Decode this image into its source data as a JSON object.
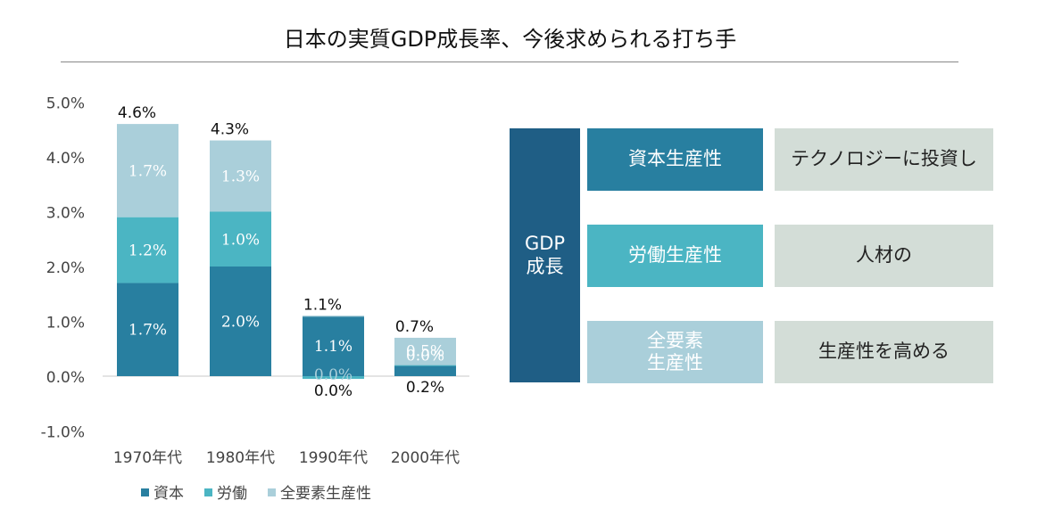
{
  "title": "日本の実質GDP成長率、今後求められる打ち手",
  "colors": {
    "capital": "#287fa0",
    "labor": "#4bb5c3",
    "tfp": "#aacfda",
    "axis_text": "#444444",
    "gdp_box": "#1f5e85",
    "green_box": "#d3ddd7"
  },
  "chart_data": {
    "type": "bar",
    "stacked": true,
    "categories": [
      "1970年代",
      "1980年代",
      "1990年代",
      "2000年代"
    ],
    "series": [
      {
        "name": "資本",
        "values": [
          1.7,
          2.0,
          1.1,
          0.2
        ],
        "labels": [
          "1.7%",
          "2.0%",
          "1.1%",
          "0.2%"
        ]
      },
      {
        "name": "労働",
        "values": [
          1.2,
          1.0,
          -0.05,
          0.0
        ],
        "labels": [
          "1.2%",
          "1.0%",
          "0.0%",
          "0.0%"
        ]
      },
      {
        "name": "全要素生産性",
        "values": [
          1.7,
          1.3,
          0.0,
          0.5
        ],
        "labels": [
          "1.7%",
          "1.3%",
          "0.0%",
          "0.5%"
        ]
      }
    ],
    "totals": [
      4.6,
      4.3,
      1.1,
      0.7
    ],
    "total_labels": [
      "4.6%",
      "4.3%",
      "1.1%",
      "0.7%"
    ],
    "yticks": [
      "5.0%",
      "4.0%",
      "3.0%",
      "2.0%",
      "1.0%",
      "0.0%",
      "-1.0%"
    ],
    "ylim": [
      -1.0,
      5.0
    ],
    "grid": false,
    "legend_position": "bottom"
  },
  "diagram": {
    "root": [
      "GDP",
      "成長"
    ],
    "drivers": [
      {
        "label": [
          "資本生産性"
        ],
        "action": "テクノロジーに投資し"
      },
      {
        "label": [
          "労働生産性"
        ],
        "action": "人材の"
      },
      {
        "label": [
          "全要素",
          "生産性"
        ],
        "action": "生産性を高める"
      }
    ]
  }
}
